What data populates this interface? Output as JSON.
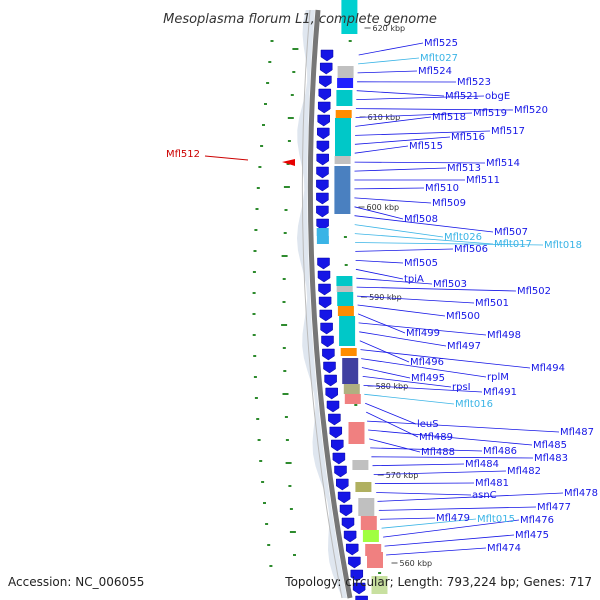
{
  "title": "Mesoplasma florum L1, complete genome",
  "footer": {
    "accession": "Accession: NC_006055",
    "topology": "Topology: circular; Length: 793,224 bp; Genes: 717"
  },
  "colors": {
    "cds": "#1616e6",
    "trna": "#3ab4e6",
    "highlight": "#cc0000",
    "backbone": "#7a7a7a"
  },
  "kbp_ticks": [
    {
      "text": "620 kbp"
    },
    {
      "text": "610 kbp"
    },
    {
      "text": "600 kbp"
    },
    {
      "text": "590 kbp"
    },
    {
      "text": "580 kbp"
    },
    {
      "text": "570 kbp"
    },
    {
      "text": "560 kbp"
    }
  ],
  "highlight_label": "Mfl512",
  "gene_labels": [
    {
      "text": "Mfl525",
      "kind": "cds"
    },
    {
      "text": "Mflt027",
      "kind": "trna"
    },
    {
      "text": "Mfl524",
      "kind": "cds"
    },
    {
      "text": "Mfl523",
      "kind": "cds"
    },
    {
      "text": "Mfl521",
      "kind": "cds"
    },
    {
      "text": "obgE",
      "kind": "cds"
    },
    {
      "text": "Mfl520",
      "kind": "cds"
    },
    {
      "text": "Mfl519",
      "kind": "cds"
    },
    {
      "text": "Mfl518",
      "kind": "cds"
    },
    {
      "text": "Mfl517",
      "kind": "cds"
    },
    {
      "text": "Mfl516",
      "kind": "cds"
    },
    {
      "text": "Mfl515",
      "kind": "cds"
    },
    {
      "text": "Mfl514",
      "kind": "cds"
    },
    {
      "text": "Mfl513",
      "kind": "cds"
    },
    {
      "text": "Mfl511",
      "kind": "cds"
    },
    {
      "text": "Mfl510",
      "kind": "cds"
    },
    {
      "text": "Mfl509",
      "kind": "cds"
    },
    {
      "text": "Mfl508",
      "kind": "cds"
    },
    {
      "text": "Mfl507",
      "kind": "cds"
    },
    {
      "text": "Mflt026",
      "kind": "trna"
    },
    {
      "text": "Mflt017",
      "kind": "trna"
    },
    {
      "text": "Mflt018",
      "kind": "trna"
    },
    {
      "text": "Mfl506",
      "kind": "cds"
    },
    {
      "text": "Mfl505",
      "kind": "cds"
    },
    {
      "text": "tpiA",
      "kind": "cds"
    },
    {
      "text": "Mfl503",
      "kind": "cds"
    },
    {
      "text": "Mfl502",
      "kind": "cds"
    },
    {
      "text": "Mfl501",
      "kind": "cds"
    },
    {
      "text": "Mfl500",
      "kind": "cds"
    },
    {
      "text": "Mfl499",
      "kind": "cds"
    },
    {
      "text": "Mfl498",
      "kind": "cds"
    },
    {
      "text": "Mfl497",
      "kind": "cds"
    },
    {
      "text": "Mfl496",
      "kind": "cds"
    },
    {
      "text": "Mfl494",
      "kind": "cds"
    },
    {
      "text": "rplM",
      "kind": "cds"
    },
    {
      "text": "Mfl495",
      "kind": "cds"
    },
    {
      "text": "rpsI",
      "kind": "cds"
    },
    {
      "text": "Mfl491",
      "kind": "cds"
    },
    {
      "text": "Mflt016",
      "kind": "trna"
    },
    {
      "text": "leuS",
      "kind": "cds"
    },
    {
      "text": "Mfl489",
      "kind": "cds"
    },
    {
      "text": "Mfl487",
      "kind": "cds"
    },
    {
      "text": "Mfl485",
      "kind": "cds"
    },
    {
      "text": "Mfl488",
      "kind": "cds"
    },
    {
      "text": "Mfl486",
      "kind": "cds"
    },
    {
      "text": "Mfl483",
      "kind": "cds"
    },
    {
      "text": "Mfl484",
      "kind": "cds"
    },
    {
      "text": "Mfl482",
      "kind": "cds"
    },
    {
      "text": "Mfl481",
      "kind": "cds"
    },
    {
      "text": "asnC",
      "kind": "cds"
    },
    {
      "text": "Mfl478",
      "kind": "cds"
    },
    {
      "text": "Mfl477",
      "kind": "cds"
    },
    {
      "text": "Mfl479",
      "kind": "cds"
    },
    {
      "text": "Mflt015",
      "kind": "trna"
    },
    {
      "text": "Mfl476",
      "kind": "cds"
    },
    {
      "text": "Mfl475",
      "kind": "cds"
    },
    {
      "text": "Mfl474",
      "kind": "cds"
    }
  ]
}
